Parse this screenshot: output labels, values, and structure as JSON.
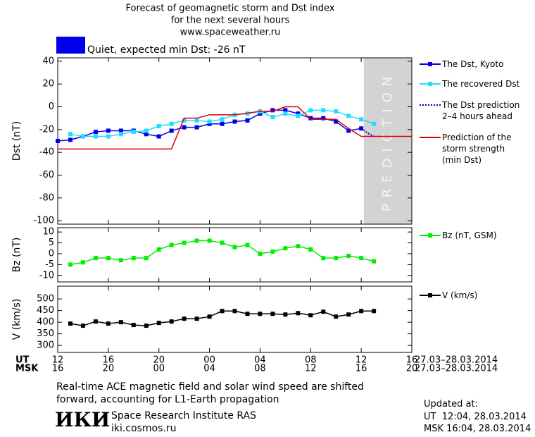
{
  "header": {
    "title": "Forecast of geomagnetic storm and Dst index",
    "subtitle": "for the next several hours",
    "url": "www.spaceweather.ru"
  },
  "status": {
    "label": "Quiet, expected min Dst: -26 nT",
    "color": "#0000ee"
  },
  "chart_data": [
    {
      "type": "line",
      "ylabel": "Dst (nT)",
      "xlim": [
        0,
        28
      ],
      "xticks": [
        0,
        4,
        8,
        12,
        16,
        20,
        24,
        28
      ],
      "ylim": [
        -103,
        43
      ],
      "yticks": [
        40,
        20,
        0,
        -20,
        -40,
        -60,
        -80,
        -100
      ],
      "prediction_band": {
        "label": "PREDICTION",
        "xlim": [
          24.2,
          28
        ],
        "color": "#d3d3d3"
      },
      "series": [
        {
          "name": "The Dst, Kyoto",
          "color": "#0000ee",
          "marker": "square",
          "x": [
            0,
            1,
            2,
            3,
            4,
            5,
            6,
            7,
            8,
            9,
            10,
            11,
            12,
            13,
            14,
            15,
            16,
            17,
            18,
            19,
            20,
            21,
            22,
            23,
            24
          ],
          "values": [
            -30,
            -29,
            -26,
            -22,
            -21,
            -21,
            -21,
            -24,
            -26,
            -21,
            -18,
            -18,
            -15,
            -15,
            -13,
            -12,
            -6,
            -3,
            -3,
            -6,
            -10,
            -10,
            -13,
            -21,
            -19
          ]
        },
        {
          "name": "The recovered Dst",
          "color": "#22ddff",
          "marker": "square",
          "x": [
            1,
            2,
            3,
            4,
            5,
            6,
            7,
            8,
            9,
            10,
            11,
            12,
            13,
            14,
            15,
            16,
            17,
            18,
            19,
            20,
            21,
            22,
            23,
            24,
            25
          ],
          "values": [
            -24,
            -26,
            -26,
            -26,
            -24,
            -22,
            -21,
            -17,
            -15,
            -12,
            -12,
            -13,
            -11,
            -7,
            -6,
            -4,
            -9,
            -6,
            -8,
            -3,
            -3,
            -4,
            -8,
            -11,
            -15
          ]
        },
        {
          "name": "The Dst prediction\n2–4 hours ahead",
          "color": "#0000cc",
          "dash": "dotted",
          "x": [
            24,
            24.5,
            25
          ],
          "values": [
            -19,
            -23,
            -26
          ]
        },
        {
          "name": "Prediction of the\nstorm strength\n(min Dst)",
          "color": "#dd0000",
          "x": [
            0,
            9,
            10,
            11,
            12,
            14,
            16,
            17,
            18,
            19,
            20,
            22,
            23,
            24,
            28
          ],
          "values": [
            -37,
            -37,
            -10,
            -10,
            -7,
            -7,
            -4,
            -4,
            0,
            0,
            -11,
            -11,
            -19,
            -26,
            -26
          ]
        }
      ]
    },
    {
      "type": "line",
      "ylabel": "Bz (nT)",
      "xlim": [
        0,
        28
      ],
      "xticks": [
        0,
        4,
        8,
        12,
        16,
        20,
        24,
        28
      ],
      "ylim": [
        -13,
        12
      ],
      "yticks": [
        10,
        5,
        0,
        -5,
        -10
      ],
      "series": [
        {
          "name": "Bz (nT, GSM)",
          "color": "#00ee00",
          "marker": "square",
          "x": [
            1,
            2,
            3,
            4,
            5,
            6,
            7,
            8,
            9,
            10,
            11,
            12,
            13,
            14,
            15,
            16,
            17,
            18,
            19,
            20,
            21,
            22,
            23,
            24,
            25
          ],
          "values": [
            -5,
            -4,
            -2,
            -2,
            -3,
            -2,
            -2,
            2,
            4,
            5,
            6,
            6,
            5,
            3,
            4,
            0,
            1,
            2.5,
            3.5,
            2,
            -2,
            -2,
            -1,
            -2,
            -3.5
          ]
        }
      ]
    },
    {
      "type": "line",
      "ylabel": "V (km/s)",
      "xlim": [
        0,
        28
      ],
      "xlabel": "UT",
      "x2label": "MSK",
      "xnotes": [
        "27.03–28.03.2014",
        "27.03–28.03.2014"
      ],
      "xticks": [
        {
          "value": 0,
          "label": "12"
        },
        {
          "value": 4,
          "label": "16"
        },
        {
          "value": 8,
          "label": "20"
        },
        {
          "value": 12,
          "label": "00"
        },
        {
          "value": 16,
          "label": "04"
        },
        {
          "value": 20,
          "label": "08"
        },
        {
          "value": 24,
          "label": "12"
        },
        {
          "value": 28,
          "label": "16"
        }
      ],
      "x2ticks": [
        {
          "value": 0,
          "label": "16"
        },
        {
          "value": 4,
          "label": "20"
        },
        {
          "value": 8,
          "label": "00"
        },
        {
          "value": 12,
          "label": "04"
        },
        {
          "value": 16,
          "label": "08"
        },
        {
          "value": 20,
          "label": "12"
        },
        {
          "value": 24,
          "label": "16"
        },
        {
          "value": 28,
          "label": "20"
        }
      ],
      "ylim": [
        270,
        555
      ],
      "yticks": [
        500,
        450,
        400,
        350,
        300
      ],
      "series": [
        {
          "name": "V (km/s)",
          "color": "#000000",
          "marker": "square",
          "x": [
            1,
            2,
            3,
            4,
            5,
            6,
            7,
            8,
            9,
            10,
            11,
            12,
            13,
            14,
            15,
            16,
            17,
            18,
            19,
            20,
            21,
            22,
            23,
            24,
            25
          ],
          "values": [
            394,
            385,
            403,
            394,
            400,
            388,
            385,
            397,
            403,
            415,
            415,
            424,
            448,
            448,
            436,
            436,
            436,
            433,
            439,
            430,
            445,
            424,
            433,
            448,
            448
          ]
        }
      ]
    }
  ],
  "footer": {
    "note": "Real-time ACE magnetic field and solar wind speed are shifted\nforward, accounting for L1-Earth propagation",
    "logo": "ИКИ",
    "institute": "Space Research Institute RAS",
    "site": "iki.cosmos.ru",
    "updated": "Updated at:",
    "updated_ut": "UT  12:04, 28.03.2014",
    "updated_msk": "MSK 16:04, 28.03.2014"
  }
}
